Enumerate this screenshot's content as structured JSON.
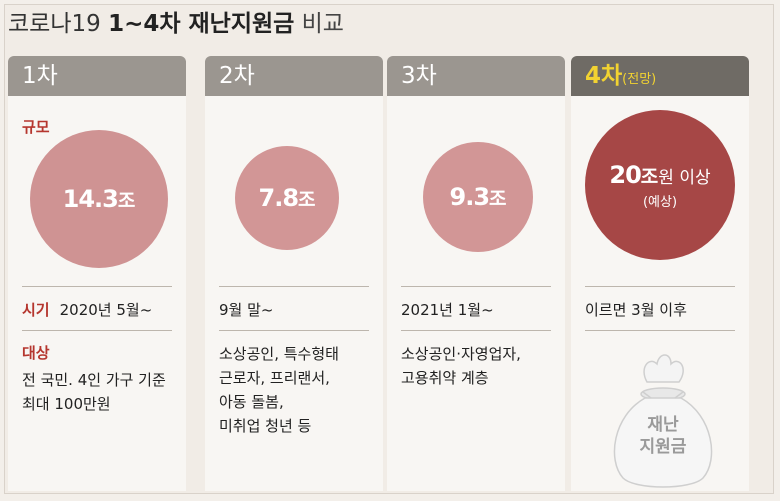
{
  "title": {
    "prefix": "코로나19",
    "bold": "1~4차 재난지원금",
    "suffix": "비교"
  },
  "labels": {
    "scale": "규모",
    "period": "시기",
    "target": "대상"
  },
  "columns": [
    {
      "header": "1차",
      "scale_value": "14.3",
      "scale_unit": "조",
      "period": "2020년 5월~",
      "target_lines": [
        "전 국민. 4인 가구 기준",
        "최대 100만원"
      ]
    },
    {
      "header": "2차",
      "scale_value": "7.8",
      "scale_unit": "조",
      "period": "9월 말~",
      "target_lines": [
        "소상공인, 특수형태",
        "근로자, 프리랜서,",
        "아동 돌봄,",
        "미취업 청년 등"
      ]
    },
    {
      "header": "3차",
      "scale_value": "9.3",
      "scale_unit": "조",
      "period": "2021년 1월~",
      "target_lines": [
        "소상공인·자영업자,",
        "고용취약 계층"
      ]
    },
    {
      "header": "4차",
      "header_note": "(전망)",
      "scale_value": "20",
      "scale_unit": "조",
      "scale_extra": "원 이상",
      "scale_sub": "(예상)",
      "period": "이르면 3월 이후",
      "bag_lines": [
        "재난",
        "지원금"
      ]
    }
  ],
  "colors": {
    "accent_red": "#b5362e",
    "circle_light": "#cf9393",
    "circle_dark": "#a64746",
    "header_gray": "#9b9690",
    "header_dark": "#6f6b65",
    "header_4_text": "#f2d331"
  }
}
